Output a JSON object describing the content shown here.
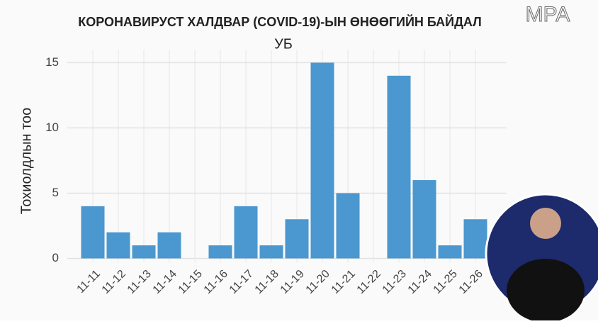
{
  "chart_data": {
    "type": "bar",
    "title": "КОРОНАВИРУСТ ХАЛДВАР (COVID-19)-ЫН ӨНӨӨГИЙН БАЙДАЛ",
    "subtitle": "УБ",
    "y_label": "Тохиолдлын тоо",
    "watermark": "MPA",
    "categories": [
      "11-11",
      "11-12",
      "11-13",
      "11-14",
      "11-15",
      "11-16",
      "11-17",
      "11-18",
      "11-19",
      "11-20",
      "11-21",
      "11-22",
      "11-23",
      "11-24",
      "11-25",
      "11-26"
    ],
    "values": [
      4,
      2,
      1,
      2,
      0,
      1,
      4,
      1,
      3,
      15,
      5,
      0,
      14,
      6,
      1,
      3
    ],
    "color": "#4b97cf",
    "ylim": [
      -0.3,
      16
    ],
    "yticks": [
      0,
      5,
      10,
      15
    ],
    "grid": true
  }
}
